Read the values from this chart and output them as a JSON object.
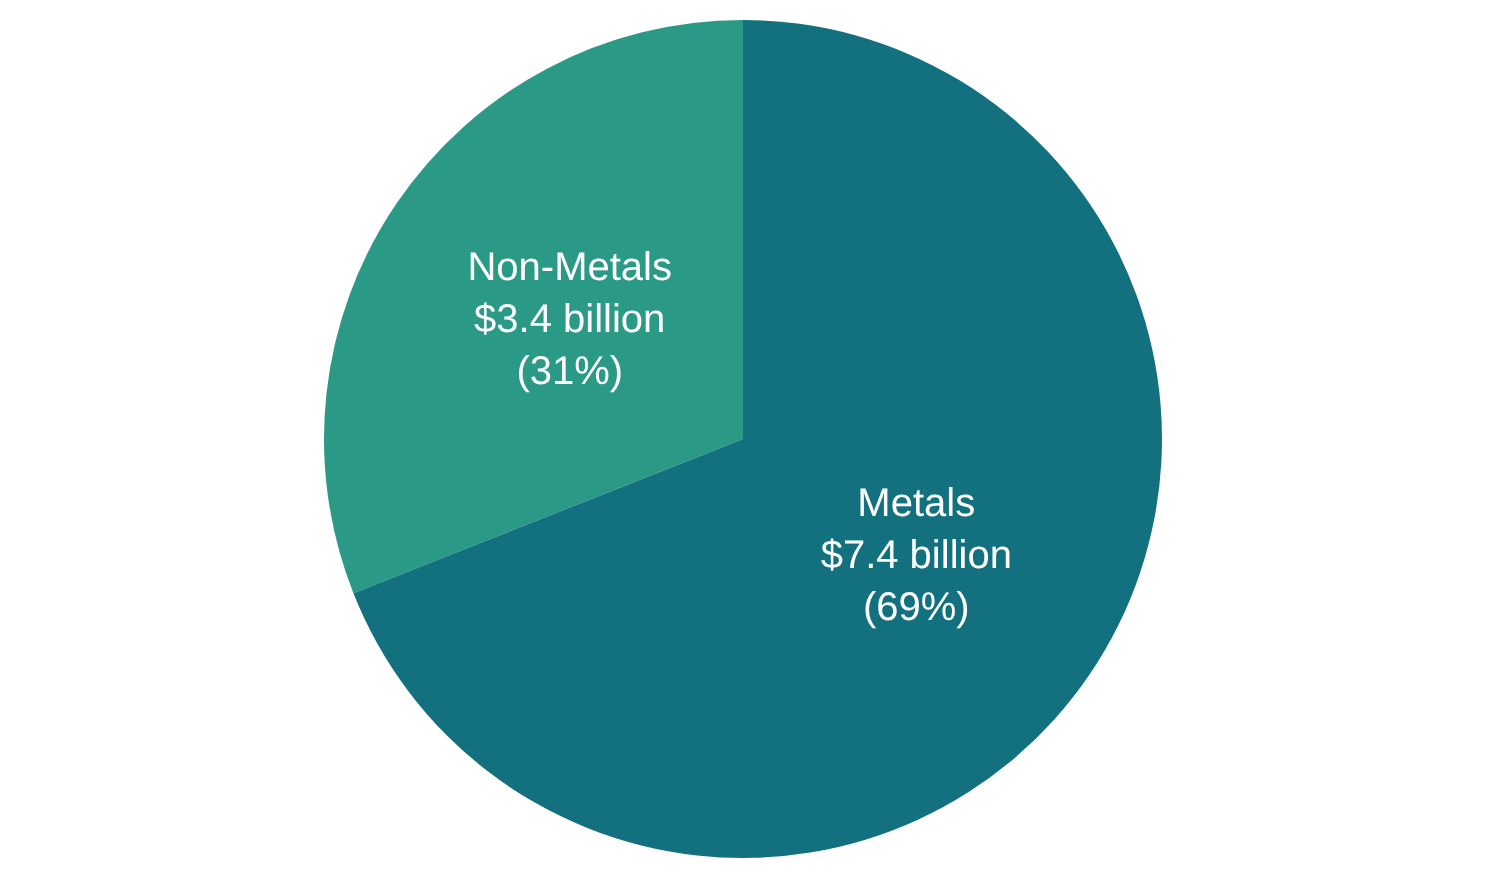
{
  "chart_data": {
    "type": "pie",
    "categories": [
      "Non-Metals",
      "Metals"
    ],
    "values": [
      31,
      69
    ],
    "colors": [
      "#2a9a86",
      "#13717f"
    ],
    "value_labels": [
      "(31%)",
      "(69%)"
    ],
    "annotations": [
      {
        "text": "$3.4 billion",
        "x": "Non-Metals"
      },
      {
        "text": "$7.4 billion",
        "x": "Metals"
      }
    ],
    "legend": false
  }
}
